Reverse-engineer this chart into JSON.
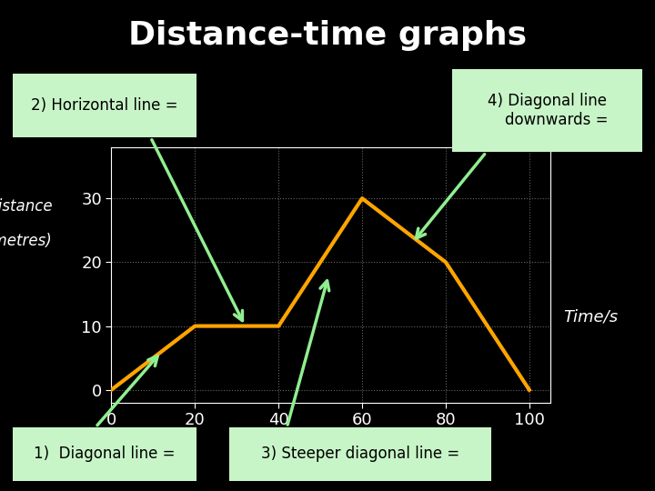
{
  "title": "Distance-time graphs",
  "title_color": "#ffffff",
  "title_fontsize": 26,
  "font_family": "Comic Sans MS",
  "background_color": "#000000",
  "plot_bg_color": "#000000",
  "line_color": "#FFA500",
  "line_width": 3,
  "grid_color": "#666666",
  "grid_linestyle": ":",
  "axis_color": "#ffffff",
  "tick_fontsize": 13,
  "xlim": [
    0,
    105
  ],
  "ylim": [
    -2,
    38
  ],
  "xticks": [
    0,
    20,
    40,
    60,
    80,
    100
  ],
  "yticks": [
    0,
    10,
    20,
    30
  ],
  "line_x": [
    0,
    20,
    40,
    60,
    80,
    100
  ],
  "line_y": [
    0,
    10,
    10,
    30,
    20,
    0
  ],
  "label_bg": "#c8f5c8",
  "label_fg": "#000000",
  "label_fontsize": 12,
  "xlabel": "Time/s",
  "xlabel_fontsize": 13,
  "ylabel1": "Distance",
  "ylabel2": "(metres)",
  "ylabel_fontsize": 12,
  "arrow_color": "#90EE90",
  "arrow_lw": 2.5,
  "arrow_mutation": 18
}
